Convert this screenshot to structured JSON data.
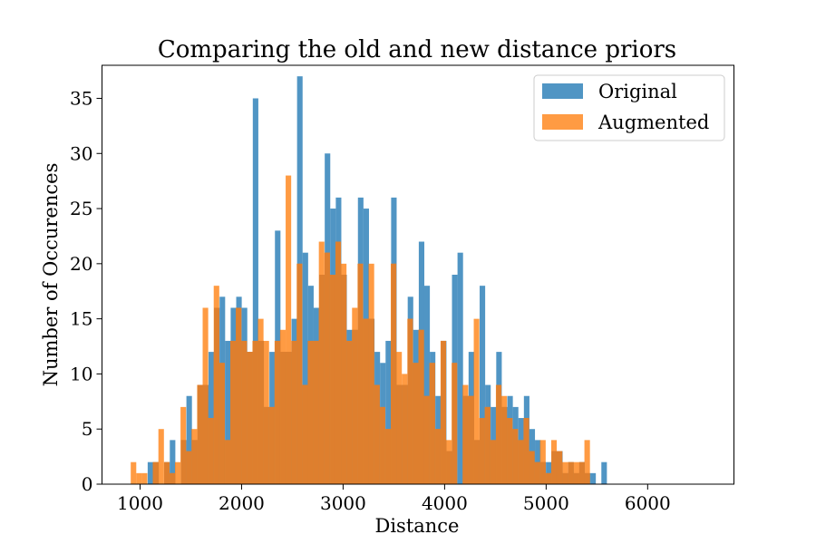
{
  "chart_data": {
    "type": "bar",
    "title": "Comparing the old and new distance priors",
    "xlabel": "Distance",
    "ylabel": "Number of Occurences",
    "xlim": [
      625,
      6850
    ],
    "ylim": [
      0,
      38
    ],
    "xticks": [
      1000,
      2000,
      3000,
      4000,
      5000,
      6000
    ],
    "yticks": [
      0,
      5,
      10,
      15,
      20,
      25,
      30,
      35
    ],
    "xtick_labels": [
      "1000",
      "2000",
      "3000",
      "4000",
      "5000",
      "6000"
    ],
    "ytick_labels": [
      "0",
      "5",
      "10",
      "15",
      "20",
      "25",
      "30",
      "35"
    ],
    "grid": false,
    "legend_position": "top-right",
    "colors": {
      "Original": "#1f77b4",
      "Augmented": "#ff7f0e",
      "overlap": "#de7f2e"
    },
    "series": [
      {
        "name": "Original",
        "bin_start": 1075,
        "bin_width": 54.5,
        "values": [
          2,
          2,
          0,
          2,
          4,
          0,
          4,
          8,
          4,
          9,
          9,
          12,
          16,
          17,
          13,
          16,
          17,
          16,
          12,
          35,
          13,
          7,
          12,
          23,
          12,
          12,
          15,
          37,
          21,
          18,
          16,
          19,
          30,
          25,
          26,
          19,
          14,
          14,
          26,
          25,
          15,
          12,
          11,
          13,
          26,
          9,
          9,
          17,
          14,
          22,
          18,
          12,
          8,
          13,
          3,
          19,
          21,
          8,
          12,
          4,
          18,
          9,
          7,
          12,
          7,
          8,
          7,
          6,
          8,
          5,
          4,
          2,
          2,
          3,
          3,
          1,
          2,
          1,
          2,
          1,
          1,
          0,
          2
        ]
      },
      {
        "name": "Augmented",
        "bin_start": 908,
        "bin_width": 54.5,
        "values": [
          2,
          1,
          1,
          0,
          2,
          5,
          2,
          1,
          2,
          7,
          3,
          5,
          9,
          16,
          6,
          18,
          11,
          4,
          13,
          16,
          13,
          12,
          13,
          15,
          13,
          7,
          13,
          14,
          28,
          13,
          20,
          9,
          13,
          13,
          22,
          21,
          19,
          22,
          20,
          13,
          16,
          20,
          15,
          20,
          9,
          7,
          5,
          20,
          12,
          10,
          15,
          11,
          14,
          8,
          11,
          5,
          13,
          4,
          11,
          0,
          9,
          8,
          15,
          6,
          7,
          4,
          9,
          8,
          6,
          5,
          4,
          6,
          3,
          2,
          4,
          1,
          4,
          3,
          2,
          2,
          2,
          2,
          4
        ]
      }
    ],
    "legend": [
      "Original",
      "Augmented"
    ]
  }
}
